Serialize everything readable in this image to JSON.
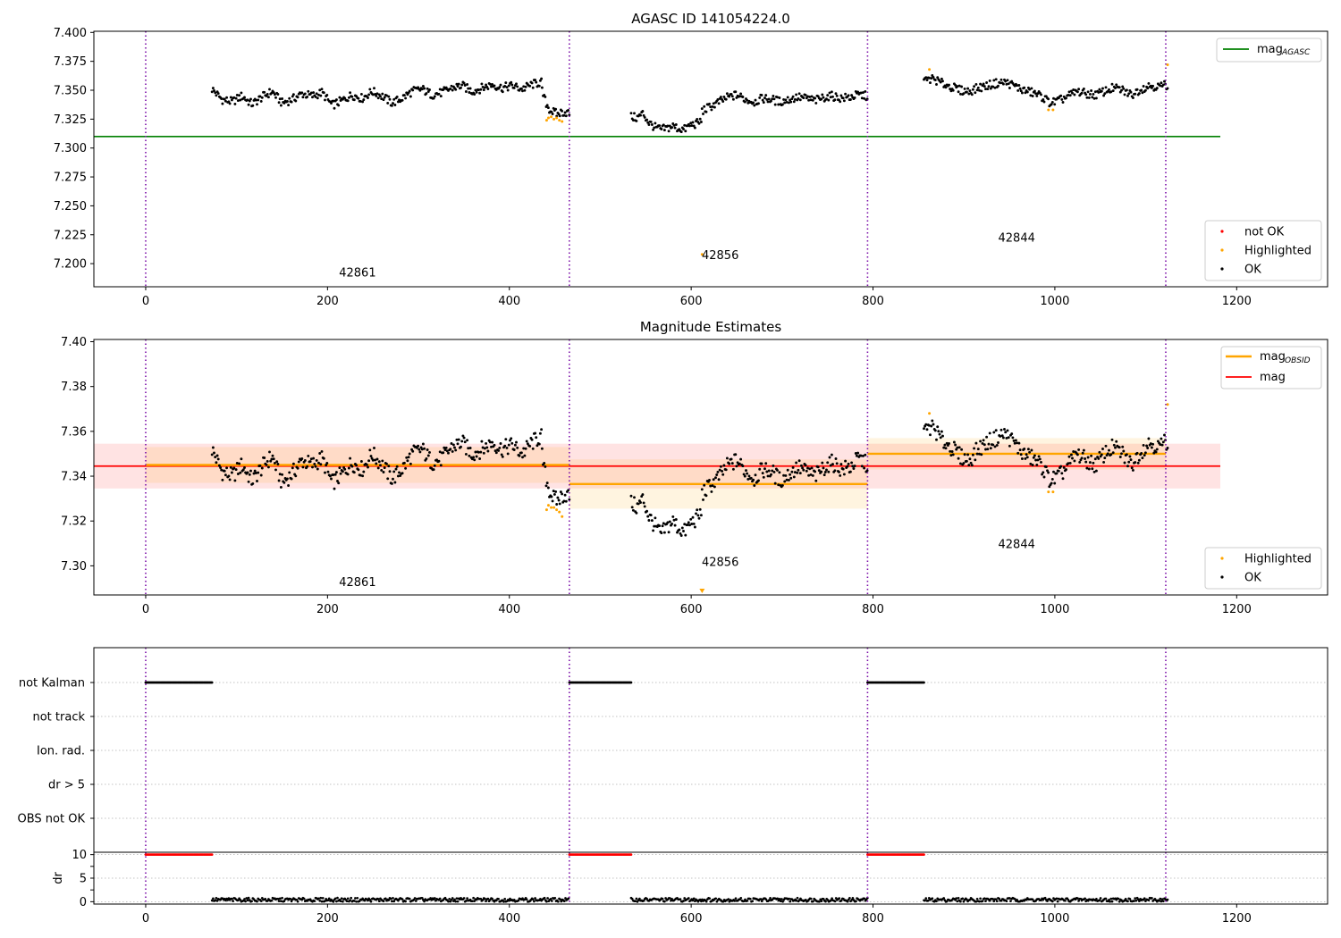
{
  "chart_data": [
    {
      "type": "scatter",
      "title": "AGASC ID 141054224.0",
      "xlim": [
        -57,
        1300
      ],
      "ylim": [
        7.18,
        7.401
      ],
      "x_ticks": [
        "0",
        "200",
        "400",
        "600",
        "800",
        "1000",
        "1200"
      ],
      "y_ticks": [
        "7.200",
        "7.225",
        "7.250",
        "7.275",
        "7.300",
        "7.325",
        "7.350",
        "7.375",
        "7.400"
      ],
      "grid": false,
      "obs_boundaries": [
        0,
        466,
        794,
        1122
      ],
      "obs_labels": [
        {
          "text": "42861",
          "x": 233,
          "y": 7.189
        },
        {
          "text": "42856",
          "x": 632,
          "y": 7.204
        },
        {
          "text": "42844",
          "x": 958,
          "y": 7.219
        }
      ],
      "series": [
        {
          "name": "mag",
          "subscript": "AGASC",
          "kind": "line",
          "color": "#008000",
          "x": [
            -57,
            1182
          ],
          "y": [
            7.31,
            7.31
          ]
        },
        {
          "name": "not OK",
          "kind": "points",
          "color": "#ff0000",
          "x": [],
          "y": []
        },
        {
          "name": "Highlighted",
          "kind": "points",
          "color": "#ffa500",
          "x": [
            441,
            443,
            446,
            449,
            452,
            455,
            458,
            612,
            862,
            993,
            998,
            1124
          ],
          "y": [
            7.324,
            7.326,
            7.327,
            7.325,
            7.326,
            7.324,
            7.323,
            7.208,
            7.368,
            7.333,
            7.333,
            7.372
          ]
        },
        {
          "name": "OK",
          "kind": "points",
          "color": "#000000",
          "segments": [
            {
              "x_start": 73,
              "x_end": 436,
              "y": [
                7.351,
                7.342,
                7.34,
                7.345,
                7.338,
                7.344,
                7.349,
                7.339,
                7.342,
                7.347,
                7.345,
                7.348,
                7.337,
                7.341,
                7.346,
                7.343,
                7.349,
                7.345,
                7.339,
                7.343,
                7.349,
                7.351,
                7.346,
                7.348,
                7.352,
                7.354,
                7.349,
                7.352,
                7.355,
                7.352,
                7.354,
                7.351,
                7.355,
                7.357
              ]
            },
            {
              "x_start": 436,
              "x_end": 466,
              "y": [
                7.349,
                7.339,
                7.333,
                7.331,
                7.329,
                7.331,
                7.331,
                7.33
              ]
            },
            {
              "x_start": 534,
              "x_end": 612,
              "y": [
                7.327,
                7.326,
                7.33,
                7.322,
                7.318,
                7.316,
                7.317,
                7.319,
                7.317,
                7.316,
                7.32,
                7.321,
                7.324
              ]
            },
            {
              "x_start": 612,
              "x_end": 794,
              "y": [
                7.332,
                7.336,
                7.34,
                7.344,
                7.346,
                7.342,
                7.34,
                7.343,
                7.342,
                7.34,
                7.342,
                7.344,
                7.343,
                7.341,
                7.344,
                7.345,
                7.343,
                7.344,
                7.346,
                7.345
              ]
            },
            {
              "x_start": 856,
              "x_end": 1124,
              "y": [
                7.358,
                7.36,
                7.356,
                7.353,
                7.35,
                7.349,
                7.352,
                7.354,
                7.356,
                7.357,
                7.354,
                7.35,
                7.348,
                7.345,
                7.339,
                7.341,
                7.345,
                7.349,
                7.347,
                7.346,
                7.349,
                7.352,
                7.35,
                7.346,
                7.351,
                7.354,
                7.353,
                7.355
              ]
            }
          ]
        }
      ],
      "legend_top": [
        "mag AGASC"
      ],
      "legend_bottom": [
        "not OK",
        "Highlighted",
        "OK"
      ]
    },
    {
      "type": "scatter",
      "title": "Magnitude Estimates",
      "xlim": [
        -57,
        1300
      ],
      "ylim": [
        7.287,
        7.401
      ],
      "x_ticks": [
        "0",
        "200",
        "400",
        "600",
        "800",
        "1000",
        "1200"
      ],
      "y_ticks": [
        "7.30",
        "7.32",
        "7.34",
        "7.36",
        "7.38",
        "7.40"
      ],
      "grid": false,
      "obs_boundaries": [
        0,
        466,
        794,
        1122
      ],
      "obs_labels": [
        {
          "text": "42861",
          "x": 233,
          "y": 7.291
        },
        {
          "text": "42856",
          "x": 632,
          "y": 7.3
        },
        {
          "text": "42844",
          "x": 958,
          "y": 7.308
        }
      ],
      "bands": [
        {
          "name": "mag",
          "color": "#ff0000",
          "x": [
            -57,
            1182
          ],
          "center": 7.3445,
          "low": 7.3345,
          "high": 7.3545
        },
        {
          "name": "mag OBSID 42861",
          "color": "#ffa500",
          "x": [
            0,
            466
          ],
          "center": 7.345,
          "low": 7.337,
          "high": 7.353
        },
        {
          "name": "mag OBSID 42856",
          "color": "#ffa500",
          "x": [
            466,
            794
          ],
          "center": 7.3365,
          "low": 7.3255,
          "high": 7.3475
        },
        {
          "name": "mag OBSID 42844",
          "color": "#ffa500",
          "x": [
            794,
            1122
          ],
          "center": 7.35,
          "low": 7.343,
          "high": 7.357
        }
      ],
      "series": [
        {
          "name": "mag",
          "subscript": "OBSID",
          "kind": "legend-line",
          "color": "#ffa500"
        },
        {
          "name": "mag",
          "kind": "legend-line",
          "color": "#ff0000"
        },
        {
          "name": "Highlighted",
          "kind": "points",
          "color": "#ffa500",
          "x": [
            441,
            443,
            446,
            449,
            452,
            455,
            458,
            862,
            993,
            998,
            1124
          ],
          "y": [
            7.325,
            7.327,
            7.326,
            7.326,
            7.325,
            7.324,
            7.322,
            7.368,
            7.333,
            7.333,
            7.372
          ]
        },
        {
          "name": "OK",
          "kind": "points",
          "color": "#000000",
          "segments": [
            {
              "x_start": 73,
              "x_end": 436,
              "y": [
                7.352,
                7.342,
                7.34,
                7.345,
                7.338,
                7.344,
                7.349,
                7.337,
                7.341,
                7.347,
                7.345,
                7.348,
                7.337,
                7.341,
                7.346,
                7.343,
                7.35,
                7.345,
                7.339,
                7.343,
                7.35,
                7.352,
                7.346,
                7.348,
                7.353,
                7.355,
                7.35,
                7.352,
                7.355,
                7.352,
                7.354,
                7.35,
                7.355,
                7.358
              ]
            },
            {
              "x_start": 436,
              "x_end": 466,
              "y": [
                7.349,
                7.339,
                7.333,
                7.33,
                7.329,
                7.331,
                7.332,
                7.331
              ]
            },
            {
              "x_start": 534,
              "x_end": 612,
              "y": [
                7.328,
                7.326,
                7.33,
                7.322,
                7.318,
                7.314,
                7.317,
                7.32,
                7.317,
                7.315,
                7.319,
                7.321,
                7.324
              ]
            },
            {
              "x_start": 612,
              "x_end": 794,
              "y": [
                7.332,
                7.336,
                7.34,
                7.345,
                7.347,
                7.342,
                7.339,
                7.343,
                7.342,
                7.338,
                7.341,
                7.344,
                7.342,
                7.34,
                7.344,
                7.346,
                7.343,
                7.344,
                7.348,
                7.345
              ]
            },
            {
              "x_start": 856,
              "x_end": 1124,
              "y": [
                7.36,
                7.362,
                7.356,
                7.353,
                7.349,
                7.347,
                7.352,
                7.355,
                7.357,
                7.359,
                7.355,
                7.35,
                7.348,
                7.345,
                7.338,
                7.34,
                7.345,
                7.35,
                7.347,
                7.345,
                7.35,
                7.353,
                7.35,
                7.345,
                7.351,
                7.355,
                7.353,
                7.356
              ]
            }
          ]
        }
      ],
      "legend_top": [
        "mag OBSID",
        "mag"
      ],
      "legend_bottom": [
        "Highlighted",
        "OK"
      ]
    },
    {
      "type": "scatter",
      "title": "",
      "xlim": [
        -57,
        1300
      ],
      "category_rows": [
        "not Kalman",
        "not track",
        "Ion. rad.",
        "dr > 5",
        "OBS not OK"
      ],
      "grid": true,
      "obs_boundaries": [
        0,
        466,
        794,
        1122
      ],
      "flag_runs": [
        {
          "row": "not Kalman",
          "ranges": [
            [
              0,
              73
            ],
            [
              466,
              534
            ],
            [
              794,
              856
            ]
          ]
        }
      ],
      "color": "#000000"
    },
    {
      "type": "scatter",
      "title": "",
      "ylabel": "dr",
      "xlim": [
        -57,
        1300
      ],
      "ylim": [
        -0.5,
        10.5
      ],
      "x_ticks": [
        "0",
        "200",
        "400",
        "600",
        "800",
        "1000",
        "1200"
      ],
      "y_ticks": [
        "0",
        "5",
        "10"
      ],
      "grid": true,
      "obs_boundaries": [
        0,
        466,
        794,
        1122
      ],
      "clipped_runs": {
        "color": "#ff0000",
        "y": 10,
        "ranges": [
          [
            0,
            73
          ],
          [
            466,
            534
          ],
          [
            794,
            856
          ]
        ]
      },
      "series": [
        {
          "name": "dr",
          "kind": "points",
          "color": "#000000",
          "ranges": [
            [
              73,
              466
            ],
            [
              534,
              794
            ],
            [
              856,
              1124
            ]
          ],
          "typical_value": 0.4
        }
      ]
    }
  ]
}
